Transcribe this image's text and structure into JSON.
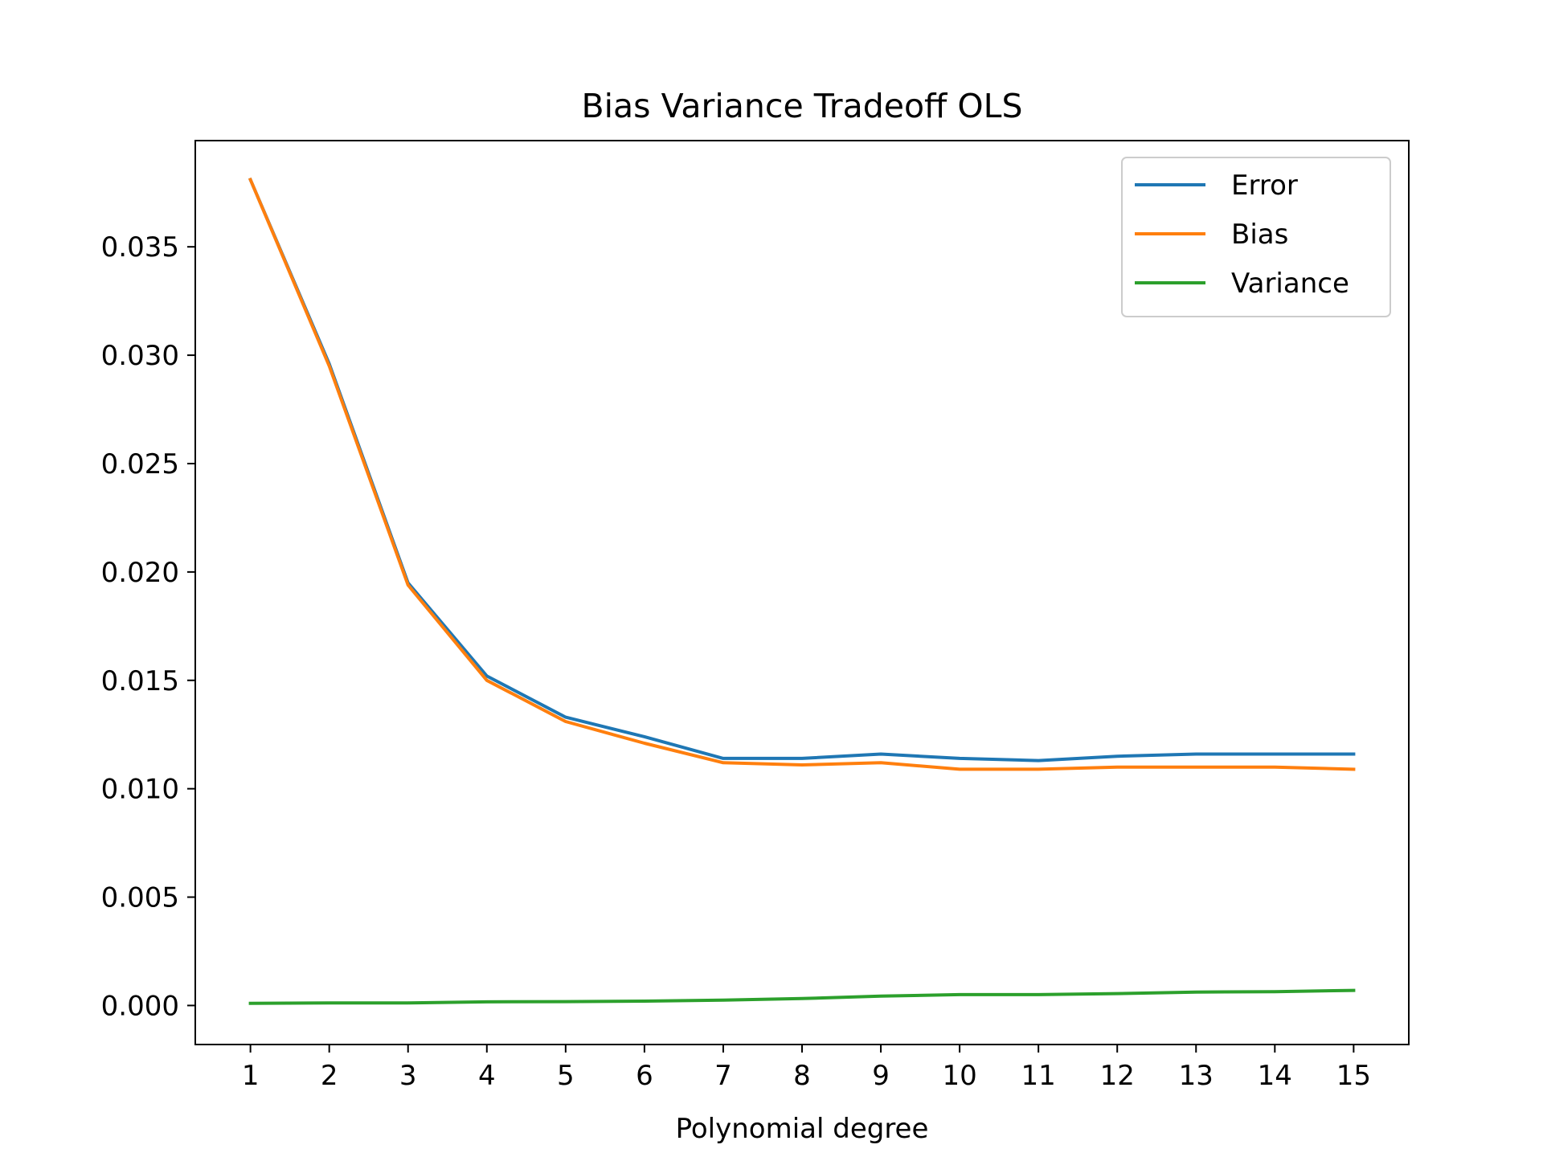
{
  "chart_data": {
    "type": "line",
    "title": "Bias Variance Tradeoff OLS",
    "xlabel": "Polynomial degree",
    "ylabel": "",
    "x": [
      1,
      2,
      3,
      4,
      5,
      6,
      7,
      8,
      9,
      10,
      11,
      12,
      13,
      14,
      15
    ],
    "xlim": [
      0.3,
      15.7
    ],
    "ylim": [
      -0.0018,
      0.0399
    ],
    "yticks": [
      0.0,
      0.005,
      0.01,
      0.015,
      0.02,
      0.025,
      0.03,
      0.035
    ],
    "ytick_labels": [
      "0.000",
      "0.005",
      "0.010",
      "0.015",
      "0.020",
      "0.025",
      "0.030",
      "0.035"
    ],
    "xtick_labels": [
      "1",
      "2",
      "3",
      "4",
      "5",
      "6",
      "7",
      "8",
      "9",
      "10",
      "11",
      "12",
      "13",
      "14",
      "15"
    ],
    "grid": false,
    "legend_position": "top-right",
    "series": [
      {
        "name": "Error",
        "color": "#1f77b4",
        "values": [
          0.0381,
          0.0296,
          0.0195,
          0.0152,
          0.0133,
          0.0124,
          0.0114,
          0.0114,
          0.0116,
          0.0114,
          0.0113,
          0.0115,
          0.0116,
          0.0116,
          0.0116
        ]
      },
      {
        "name": "Bias",
        "color": "#ff7f0e",
        "values": [
          0.0381,
          0.0295,
          0.0194,
          0.015,
          0.0131,
          0.0121,
          0.0112,
          0.0111,
          0.0112,
          0.0109,
          0.0109,
          0.011,
          0.011,
          0.011,
          0.0109
        ]
      },
      {
        "name": "Variance",
        "color": "#2ca02c",
        "values": [
          0.0001,
          0.00012,
          0.00012,
          0.00017,
          0.00018,
          0.0002,
          0.00025,
          0.00032,
          0.00043,
          0.0005,
          0.0005,
          0.00055,
          0.00062,
          0.00064,
          0.0007
        ]
      }
    ]
  }
}
